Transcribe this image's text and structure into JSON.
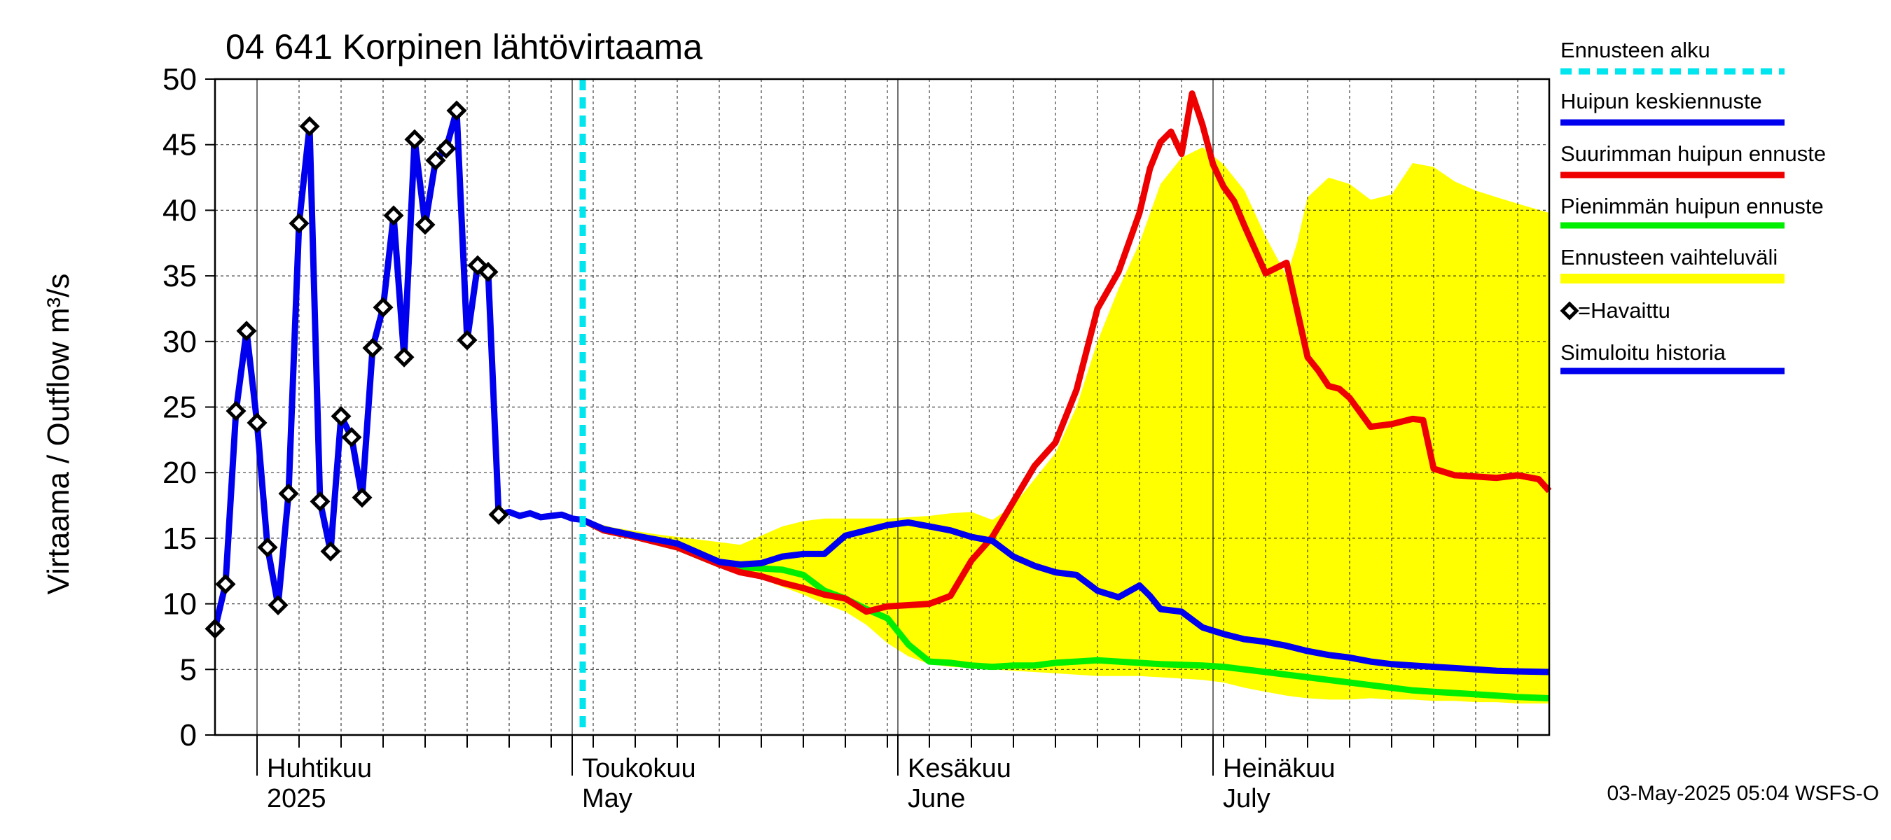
{
  "chart_data": {
    "type": "line",
    "title": "04 641 Korpinen lähtövirtaama",
    "ylabel": "Virtaama / Outflow    m³/s",
    "ylim": [
      0,
      50
    ],
    "yticks": [
      0,
      5,
      10,
      15,
      20,
      25,
      30,
      35,
      40,
      45,
      50
    ],
    "x_domain_days": [
      -4,
      123
    ],
    "x_domain_note": "days after 1-Apr-2025",
    "month_labels": [
      {
        "fi": "Huhtikuu",
        "en": "2025",
        "day": 0
      },
      {
        "fi": "Toukokuu",
        "en": "May",
        "day": 30
      },
      {
        "fi": "Kesäkuu",
        "en": "June",
        "day": 61
      },
      {
        "fi": "Heinäkuu",
        "en": "July",
        "day": 91
      }
    ],
    "forecast_start_day": 31,
    "footer": "03-May-2025 05:04 WSFS-O",
    "legend": [
      {
        "key": "forecast_start",
        "label": "Ennusteen alku",
        "color": "#00e5ee",
        "style": "dashed"
      },
      {
        "key": "mean",
        "label": "Huipun keskiennuste",
        "color": "#0000ee",
        "style": "line"
      },
      {
        "key": "max",
        "label": "Suurimman huipun ennuste",
        "color": "#ee0000",
        "style": "line"
      },
      {
        "key": "min",
        "label": "Pienimmän huipun ennuste",
        "color": "#00ee00",
        "style": "line"
      },
      {
        "key": "range",
        "label": "Ennusteen vaihteluväli",
        "color": "#ffff00",
        "style": "band"
      },
      {
        "key": "observed",
        "label": "=Havaittu",
        "color": "#000000",
        "style": "marker"
      },
      {
        "key": "history",
        "label": "Simuloitu historia",
        "color": "#0000ee",
        "style": "line"
      }
    ],
    "series": {
      "observed": {
        "name": "Havaittu",
        "x": [
          -4,
          -3,
          -2,
          -1,
          0,
          1,
          2,
          3,
          4,
          5,
          6,
          7,
          8,
          9,
          10,
          11,
          12,
          13,
          14,
          15,
          16,
          17,
          18,
          19,
          20,
          21,
          22,
          23
        ],
        "y": [
          8.1,
          11.5,
          24.7,
          30.8,
          23.8,
          14.3,
          9.9,
          18.4,
          39.0,
          46.4,
          17.8,
          14.0,
          24.3,
          22.7,
          18.1,
          29.5,
          32.6,
          39.6,
          28.8,
          45.4,
          38.9,
          43.8,
          44.7,
          47.6,
          30.1,
          35.8,
          35.3,
          16.8
        ]
      },
      "history": {
        "name": "Simuloitu historia",
        "x": [
          -4,
          -3,
          -2,
          -1,
          0,
          1,
          2,
          3,
          4,
          5,
          6,
          7,
          8,
          9,
          10,
          11,
          12,
          13,
          14,
          15,
          16,
          17,
          18,
          19,
          20,
          21,
          22,
          23,
          24,
          25,
          26,
          27,
          28,
          29,
          30,
          31
        ],
        "y": [
          8.1,
          11.5,
          24.7,
          30.8,
          23.8,
          14.3,
          9.9,
          18.4,
          39.0,
          46.4,
          17.8,
          14.0,
          24.3,
          22.7,
          18.1,
          29.5,
          32.6,
          39.6,
          28.8,
          45.4,
          38.9,
          43.8,
          44.7,
          47.6,
          30.1,
          35.8,
          35.3,
          16.8,
          17.0,
          16.7,
          16.9,
          16.6,
          16.7,
          16.8,
          16.5,
          16.4
        ]
      },
      "mean": {
        "name": "Huipun keskiennuste",
        "x": [
          31,
          33,
          36,
          40,
          44,
          46,
          48,
          50,
          52,
          54,
          56,
          58,
          60,
          62,
          64,
          66,
          68,
          70,
          72,
          74,
          76,
          78,
          80,
          82,
          84,
          85,
          86,
          87,
          88,
          89,
          90,
          92,
          94,
          96,
          98,
          100,
          102,
          104,
          106,
          108,
          110,
          112,
          114,
          116,
          118,
          120,
          123
        ],
        "y": [
          16.4,
          15.7,
          15.2,
          14.6,
          13.2,
          13.0,
          13.1,
          13.6,
          13.8,
          13.8,
          15.2,
          15.6,
          16.0,
          16.2,
          15.9,
          15.6,
          15.1,
          14.8,
          13.6,
          12.9,
          12.4,
          12.2,
          11.0,
          10.5,
          11.4,
          10.6,
          9.6,
          9.5,
          9.4,
          8.8,
          8.2,
          7.7,
          7.3,
          7.1,
          6.8,
          6.4,
          6.1,
          5.9,
          5.6,
          5.4,
          5.3,
          5.2,
          5.1,
          5.0,
          4.9,
          4.85,
          4.8
        ]
      },
      "max": {
        "name": "Suurimman huipun ennuste",
        "x": [
          31,
          33,
          36,
          40,
          44,
          46,
          48,
          50,
          52,
          54,
          56,
          58,
          60,
          62,
          64,
          66,
          68,
          70,
          72,
          74,
          76,
          78,
          80,
          82,
          84,
          85,
          86,
          87,
          88,
          89,
          90,
          91,
          92,
          93,
          94,
          96,
          98,
          100,
          101,
          102,
          103,
          104,
          106,
          108,
          110,
          111,
          112,
          114,
          116,
          118,
          120,
          122,
          123
        ],
        "y": [
          16.4,
          15.6,
          15.1,
          14.3,
          13.0,
          12.4,
          12.1,
          11.6,
          11.2,
          10.7,
          10.4,
          9.4,
          9.8,
          9.9,
          10.0,
          10.6,
          13.3,
          15.1,
          17.8,
          20.5,
          22.3,
          26.3,
          32.5,
          35.3,
          39.8,
          43.2,
          45.2,
          46.0,
          44.3,
          48.9,
          46.5,
          43.5,
          41.8,
          40.7,
          38.8,
          35.2,
          36.0,
          28.8,
          27.8,
          26.6,
          26.4,
          25.7,
          23.5,
          23.7,
          24.1,
          24.0,
          20.3,
          19.8,
          19.7,
          19.6,
          19.8,
          19.5,
          18.6
        ]
      },
      "min": {
        "name": "Pienimmän huipun ennuste",
        "x": [
          31,
          33,
          36,
          40,
          44,
          46,
          48,
          50,
          52,
          54,
          56,
          58,
          60,
          62,
          64,
          66,
          68,
          70,
          72,
          74,
          76,
          78,
          80,
          82,
          84,
          86,
          88,
          90,
          92,
          94,
          96,
          98,
          100,
          102,
          104,
          106,
          108,
          110,
          112,
          114,
          116,
          118,
          120,
          123
        ],
        "y": [
          16.4,
          15.6,
          15.1,
          14.3,
          13.0,
          12.8,
          12.7,
          12.6,
          12.2,
          11.0,
          10.4,
          9.6,
          8.9,
          6.9,
          5.6,
          5.5,
          5.3,
          5.2,
          5.3,
          5.3,
          5.5,
          5.6,
          5.7,
          5.6,
          5.5,
          5.4,
          5.35,
          5.3,
          5.2,
          5.0,
          4.8,
          4.6,
          4.4,
          4.2,
          4.0,
          3.8,
          3.6,
          3.4,
          3.3,
          3.2,
          3.1,
          3.0,
          2.9,
          2.8
        ]
      },
      "range": {
        "name": "Ennusteen vaihteluväli",
        "x": [
          31,
          34,
          38,
          42,
          46,
          48,
          50,
          52,
          54,
          56,
          58,
          60,
          62,
          64,
          66,
          68,
          70,
          72,
          74,
          76,
          78,
          80,
          82,
          84,
          86,
          88,
          90,
          92,
          94,
          96,
          98,
          99,
          100,
          102,
          104,
          106,
          108,
          110,
          112,
          114,
          116,
          118,
          120,
          123
        ],
        "upper": [
          16.4,
          15.8,
          15.3,
          14.9,
          14.5,
          15.2,
          15.9,
          16.3,
          16.5,
          16.5,
          16.5,
          16.5,
          16.6,
          16.7,
          16.9,
          17.0,
          16.4,
          17.5,
          19.5,
          21.5,
          25.0,
          30.0,
          34.0,
          37.5,
          42.0,
          44.0,
          44.8,
          43.5,
          41.5,
          38.0,
          35.0,
          37.5,
          41.0,
          42.5,
          42.0,
          40.8,
          41.2,
          43.6,
          43.3,
          42.2,
          41.5,
          41.0,
          40.5,
          39.8
        ],
        "lower": [
          16.4,
          15.4,
          14.8,
          13.8,
          12.4,
          11.9,
          11.3,
          10.7,
          10.0,
          9.4,
          8.4,
          7.0,
          6.0,
          5.4,
          5.2,
          5.1,
          5.0,
          4.9,
          4.8,
          4.7,
          4.6,
          4.5,
          4.5,
          4.5,
          4.4,
          4.3,
          4.2,
          4.0,
          3.6,
          3.3,
          3.0,
          2.9,
          2.8,
          2.7,
          2.7,
          2.8,
          2.7,
          2.7,
          2.6,
          2.6,
          2.5,
          2.5,
          2.4,
          2.4
        ]
      }
    }
  }
}
